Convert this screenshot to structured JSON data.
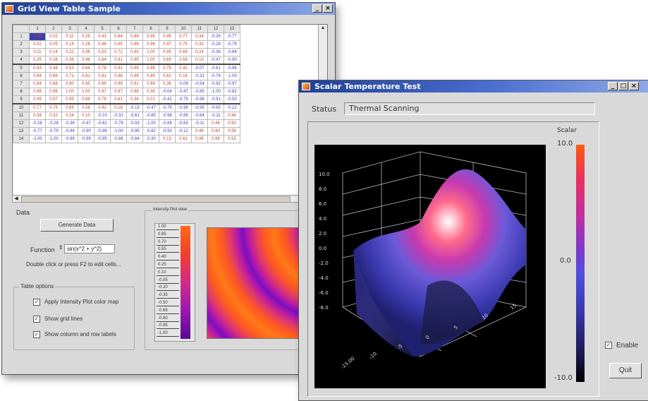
{
  "window1": {
    "title": "Grid View Table Sample",
    "columns": [
      "",
      "1",
      "2",
      "3",
      "4",
      "5",
      "6",
      "7",
      "8",
      "9",
      "10",
      "11",
      "12",
      "13"
    ],
    "rows": [
      {
        "h": "1",
        "c": [
          "0.00",
          "0.02",
          "0.11",
          "0.25",
          "0.43",
          "0.64",
          "0.86",
          "0.95",
          "0.99",
          "0.77",
          "0.34",
          "-0.26",
          "-0.77"
        ]
      },
      {
        "h": "2",
        "c": [
          "0.02",
          "0.05",
          "0.14",
          "0.28",
          "0.46",
          "0.65",
          "0.86",
          "0.96",
          "0.97",
          "0.75",
          "0.32",
          "-0.28",
          "-0.79"
        ]
      },
      {
        "h": "3",
        "c": [
          "0.11",
          "0.14",
          "0.22",
          "0.36",
          "0.53",
          "0.72",
          "0.90",
          "1.00",
          "0.95",
          "0.69",
          "0.24",
          "-0.36",
          "-0.84"
        ]
      },
      {
        "h": "4",
        "c": [
          "0.25",
          "0.28",
          "0.36",
          "0.48",
          "0.64",
          "0.81",
          "0.95",
          "1.00",
          "0.89",
          "0.58",
          "0.10",
          "-0.47",
          "-0.90"
        ]
      },
      {
        "h": "5",
        "c": [
          "0.43",
          "0.46",
          "0.53",
          "0.64",
          "0.78",
          "0.91",
          "0.99",
          "0.98",
          "0.79",
          "0.42",
          "-0.07",
          "-0.61",
          "-0.96"
        ]
      },
      {
        "h": "6",
        "c": [
          "0.64",
          "0.66",
          "0.71",
          "0.81",
          "0.91",
          "0.98",
          "0.99",
          "0.89",
          "0.62",
          "0.18",
          "-0.31",
          "-0.78",
          "-1.00"
        ]
      },
      {
        "h": "7",
        "c": [
          "0.84",
          "0.86",
          "0.90",
          "0.95",
          "0.99",
          "0.99",
          "0.91",
          "0.69",
          "0.36",
          "-0.09",
          "-0.54",
          "-0.92",
          "-0.97"
        ]
      },
      {
        "h": "8",
        "c": [
          "0.98",
          "0.96",
          "1.00",
          "1.00",
          "0.97",
          "0.87",
          "0.68",
          "0.36",
          "-0.04",
          "-0.47",
          "-0.85",
          "-1.00",
          "-0.82"
        ]
      },
      {
        "h": "9",
        "c": [
          "0.99",
          "0.97",
          "0.95",
          "0.88",
          "0.78",
          "0.61",
          "0.34",
          "0.01",
          "-0.42",
          "-0.75",
          "-0.98",
          "-0.91",
          "-0.50"
        ]
      },
      {
        "h": "10",
        "c": [
          "0.77",
          "0.75",
          "0.69",
          "0.58",
          "0.42",
          "0.18",
          "-0.13",
          "-0.47",
          "-0.75",
          "-0.98",
          "-0.95",
          "-0.65",
          "-0.12"
        ]
      },
      {
        "h": "11",
        "c": [
          "0.34",
          "0.32",
          "0.24",
          "0.10",
          "-0.10",
          "-0.31",
          "-0.61",
          "-0.85",
          "-0.98",
          "-0.95",
          "-0.64",
          "-0.11",
          "0.46"
        ]
      },
      {
        "h": "12",
        "c": [
          "-0.26",
          "-0.28",
          "-0.36",
          "-0.47",
          "-0.62",
          "-0.78",
          "-0.93",
          "-1.00",
          "-0.89",
          "-0.63",
          "-0.11",
          "0.48",
          "0.90"
        ]
      },
      {
        "h": "13",
        "c": [
          "-0.77",
          "-0.79",
          "-0.84",
          "-0.90",
          "-0.96",
          "-1.00",
          "-0.95",
          "-0.82",
          "-0.50",
          "-0.12",
          "0.46",
          "0.90",
          "0.99"
        ]
      },
      {
        "h": "14",
        "c": [
          "-1.00",
          "-1.00",
          "-0.99",
          "-0.99",
          "-0.95",
          "-0.86",
          "-0.64",
          "-0.30",
          "0.13",
          "0.61",
          "0.96",
          "0.96",
          "0.55"
        ]
      }
    ],
    "data_group_label": "Data",
    "generate_button": "Generate Data",
    "function_label": "Function",
    "function_value": "sin(x^2 + y^2)",
    "hint_text": "Double click or press F2 to edit cells...",
    "table_options_label": "Table options",
    "opt_apply_color": "Apply Intensity Plot color map",
    "opt_gridlines": "Show grid lines",
    "opt_headers": "Show column and row labels",
    "intensity_group_label": "Intensity Plot view",
    "legend_ticks": [
      "1.00",
      "0.85",
      "0.70",
      "0.55",
      "0.40",
      "0.25",
      "0.10",
      "-0.05",
      "-0.20",
      "-0.35",
      "-0.50",
      "-0.65",
      "-0.80",
      "-0.95",
      "-1.00"
    ]
  },
  "window2": {
    "title": "Scalar Temperature Test",
    "status_label": "Status",
    "status_value": "Thermal Scanning",
    "colorbar_title": "Scalar",
    "colorbar_ticks": [
      "10.0",
      "0.0",
      "-10.0"
    ],
    "axis_z_ticks": [
      "10.0",
      "8.0",
      "6.0",
      "4.0",
      "2.0",
      "0.0",
      "-2.0",
      "-4.0",
      "-6.0",
      "-8.0"
    ],
    "axis_x_ticks": [
      "-15.00",
      "-10",
      "-5",
      "0",
      "5",
      "10",
      "15"
    ],
    "enable_label": "Enable",
    "quit_label": "Quit"
  },
  "colors": {
    "title_bar": "#2a4aa8",
    "window_bg": "#d9d9d9",
    "plot_bg": "#000000",
    "selection": "#3b3fb0"
  }
}
